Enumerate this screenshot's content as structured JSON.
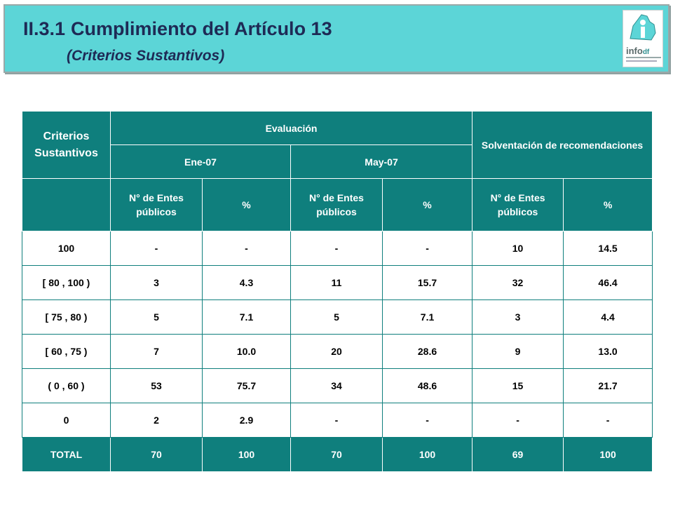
{
  "header": {
    "section_number": "II.3.1",
    "title": "Cumplimiento del Artículo 13",
    "subtitle": "(Criterios Sustantivos)",
    "logo_text": "info",
    "logo_suffix": "df"
  },
  "table": {
    "criteria_header": "Criterios Sustantivos",
    "evaluation_header": "Evaluación",
    "solventacion_header": "Solventación de recomendaciones",
    "period_1": "Ene-07",
    "period_2": "May-07",
    "count_label": "N° de Entes públicos",
    "percent_label": "%",
    "rows": [
      {
        "criteria": "100",
        "c1": "-",
        "p1": "-",
        "c2": "-",
        "p2": "-",
        "c3": "10",
        "p3": "14.5"
      },
      {
        "criteria": "[ 80 , 100 )",
        "c1": "3",
        "p1": "4.3",
        "c2": "11",
        "p2": "15.7",
        "c3": "32",
        "p3": "46.4"
      },
      {
        "criteria": "[ 75 , 80 )",
        "c1": "5",
        "p1": "7.1",
        "c2": "5",
        "p2": "7.1",
        "c3": "3",
        "p3": "4.4"
      },
      {
        "criteria": "[ 60 , 75 )",
        "c1": "7",
        "p1": "10.0",
        "c2": "20",
        "p2": "28.6",
        "c3": "9",
        "p3": "13.0"
      },
      {
        "criteria": "( 0 , 60 )",
        "c1": "53",
        "p1": "75.7",
        "c2": "34",
        "p2": "48.6",
        "c3": "15",
        "p3": "21.7"
      },
      {
        "criteria": "0",
        "c1": "2",
        "p1": "2.9",
        "c2": "-",
        "p2": "-",
        "c3": "-",
        "p3": "-"
      }
    ],
    "total": {
      "criteria": "TOTAL",
      "c1": "70",
      "p1": "100",
      "c2": "70",
      "p2": "100",
      "c3": "69",
      "p3": "100"
    }
  },
  "colors": {
    "banner": "#5cd5d7",
    "table_header": "#0f7f7d",
    "title_text": "#1e2a55"
  }
}
